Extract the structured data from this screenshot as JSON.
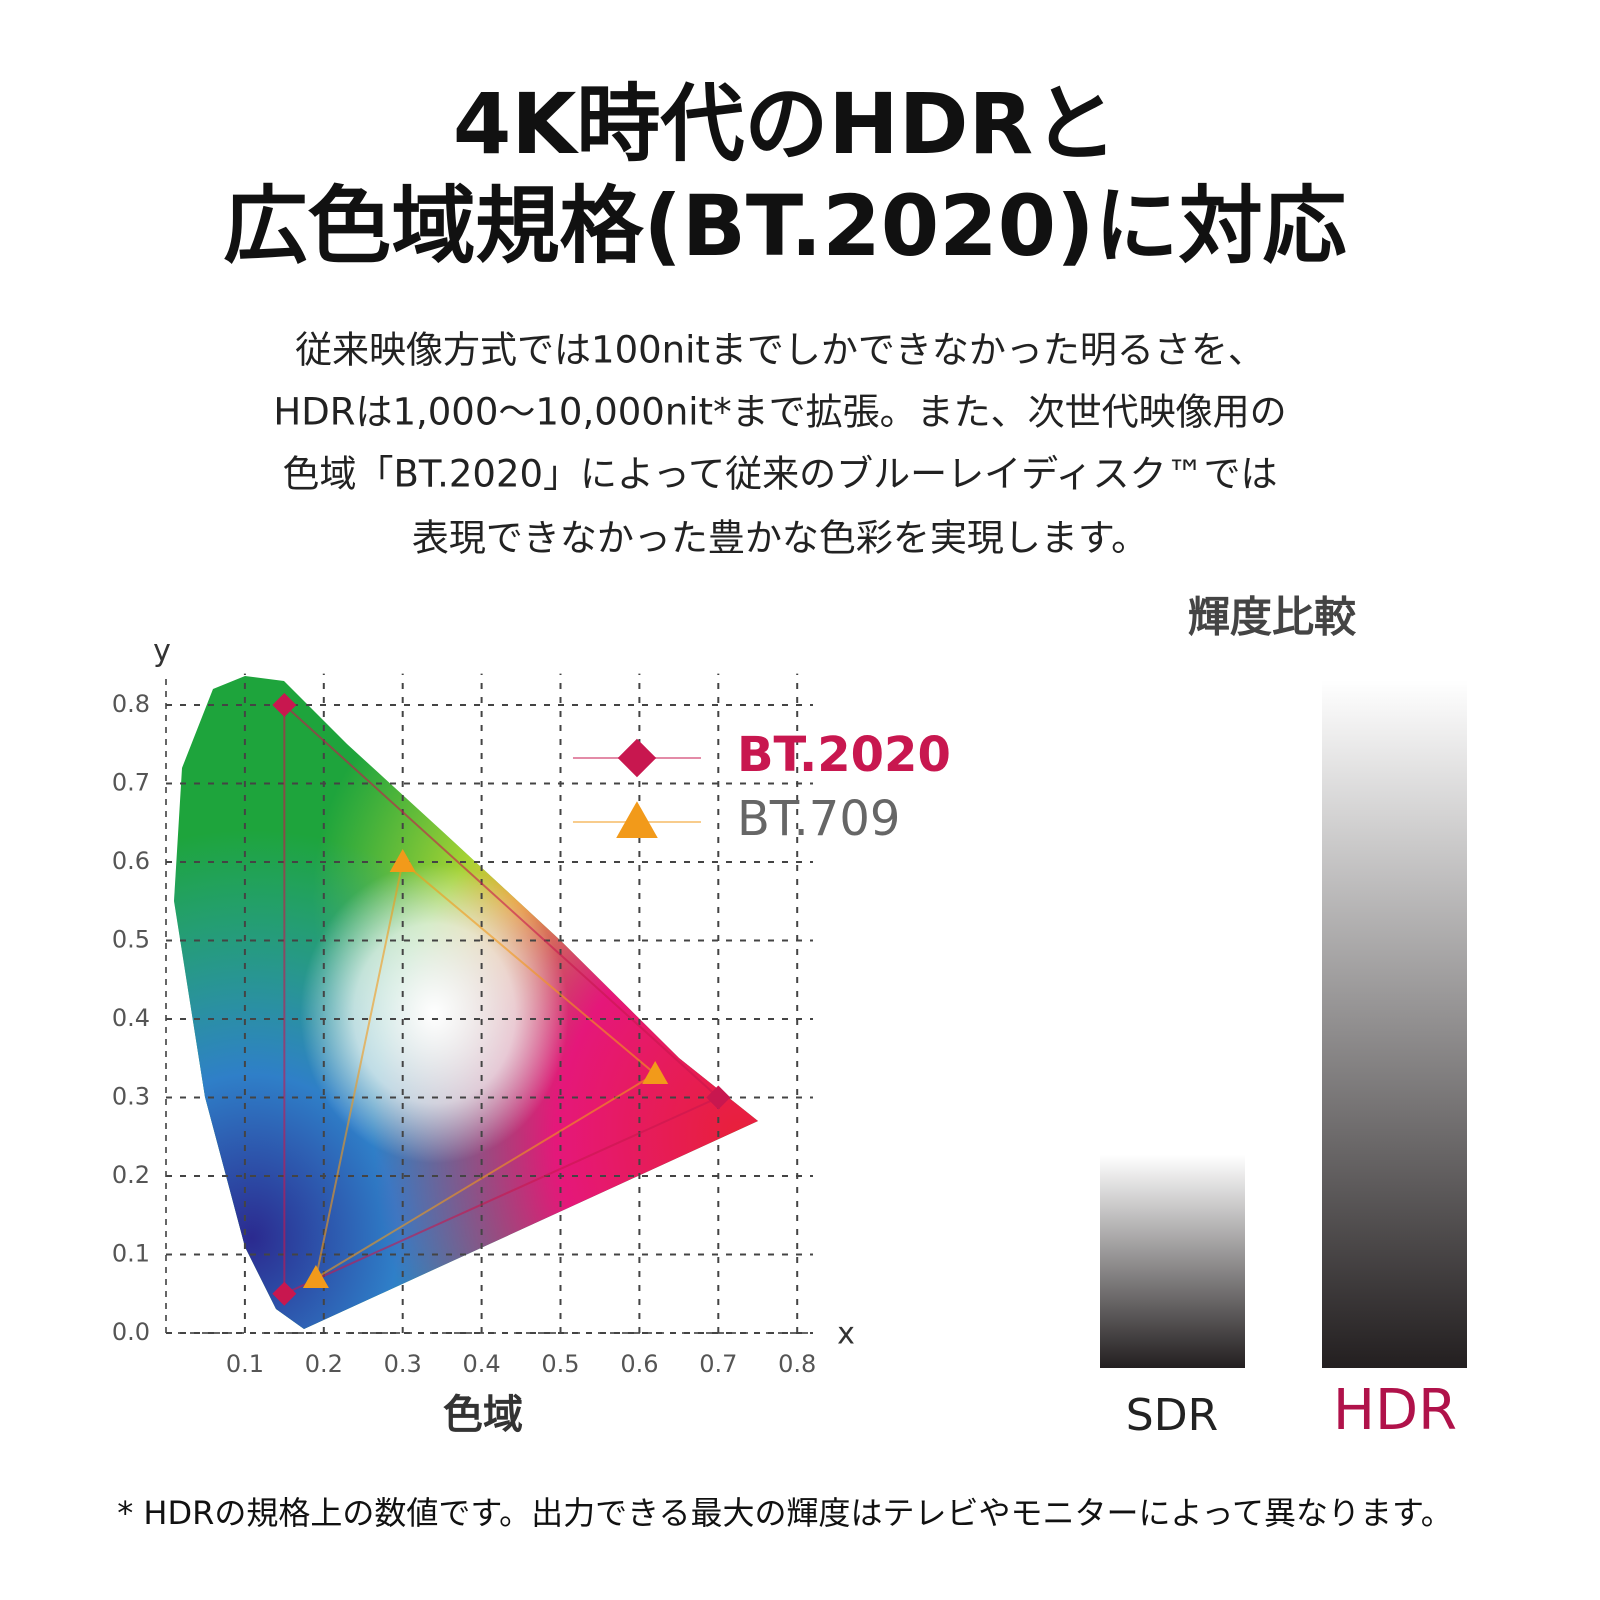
{
  "header": {
    "title": [
      "4K時代のHDRと",
      "広色域規格(BT.2020)に対応"
    ]
  },
  "body": [
    "従来映像方式では100nitまでしかできなかった明るさを、",
    "HDRは1,000〜10,000nit*まで拡張。また、次世代映像用の",
    "色域「BT.2020」によって従来のブルーレイディスク™では",
    "表現できなかった豊かな色彩を実現します。"
  ],
  "chart_data": {
    "type": "scatter",
    "x_label": "x",
    "y_label": "y",
    "caption": "色域",
    "xlim": [
      0,
      0.82
    ],
    "ylim": [
      0,
      0.84
    ],
    "xticks": [
      0.1,
      0.2,
      0.3,
      0.4,
      0.5,
      0.6,
      0.7,
      0.8
    ],
    "yticks": [
      {
        "value": 0,
        "label": "0.0"
      },
      0.1,
      0.2,
      0.3,
      0.4,
      0.5,
      0.6,
      0.7,
      0.8
    ],
    "grid": true,
    "legend": "upper right",
    "series": [
      {
        "name": "BT.2020",
        "color": "#c8174f",
        "marker": "diamond",
        "x": [
          0.7,
          0.15,
          0.15
        ],
        "values": [
          0.3,
          0.8,
          0.05
        ]
      },
      {
        "name": "BT.709",
        "color": "#f29a1a",
        "marker": "triangle",
        "x": [
          0.62,
          0.3,
          0.19
        ],
        "values": [
          0.33,
          0.6,
          0.07
        ]
      }
    ]
  },
  "luminance": {
    "title": "輝度比較",
    "labels": [
      "SDR",
      "HDR"
    ]
  },
  "footnote": "* HDRの規格上の数値です。出力できる最大の輝度はテレビやモニターによって異なります。"
}
